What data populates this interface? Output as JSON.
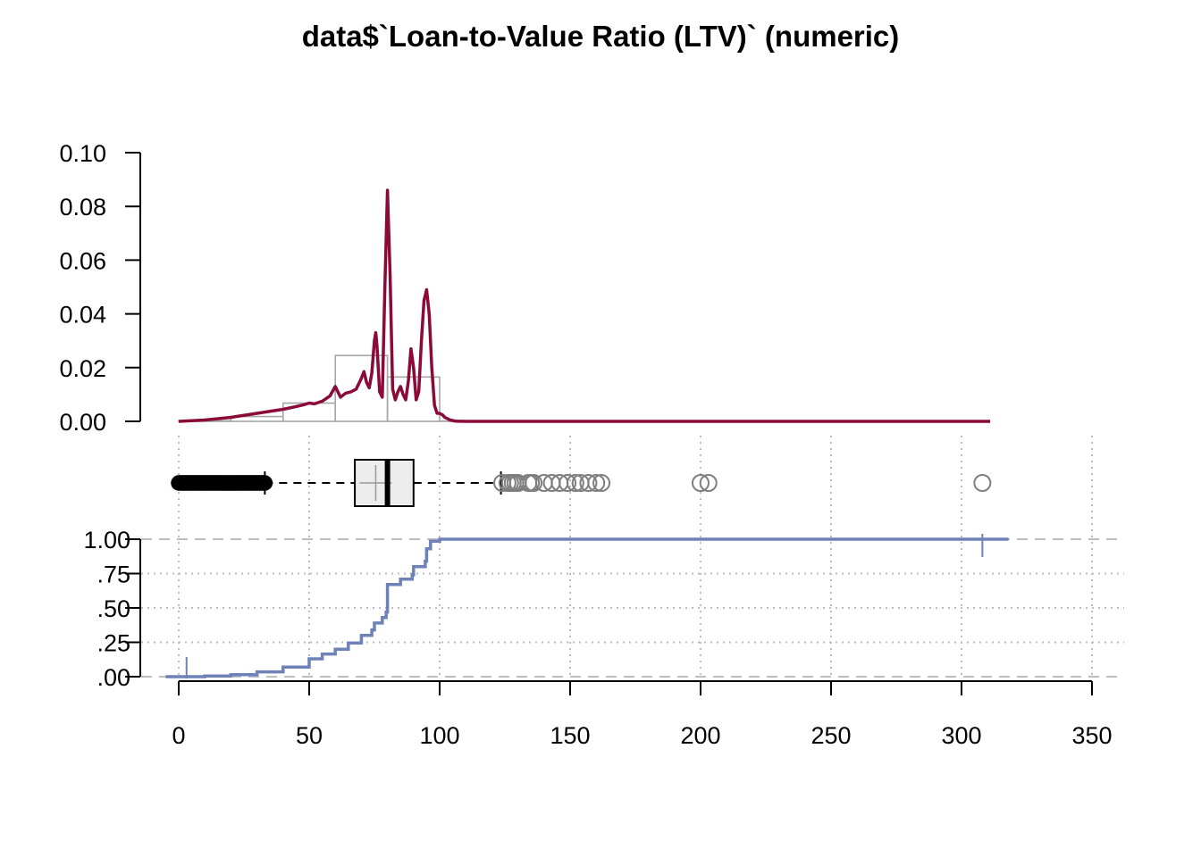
{
  "chart_data": {
    "type": "density+boxplot+ecdf",
    "title": "data$`Loan-to-Value Ratio (LTV)` (numeric)",
    "xlim": [
      0,
      350
    ],
    "x_ticks": [
      0,
      50,
      100,
      150,
      200,
      250,
      300,
      350
    ],
    "x_tick_labels": [
      "0",
      "50",
      "100",
      "150",
      "200",
      "250",
      "300",
      "350"
    ],
    "colors": {
      "density": "#8B0A3A",
      "histogram": "#A6A6A6",
      "ecdf": "#6F82B8",
      "grid": "#BDBDBD",
      "box_fill": "#EDEDED",
      "outlier": "#7F7F7F"
    },
    "density_panel": {
      "ylim": [
        0,
        0.1
      ],
      "y_ticks": [
        0,
        0.02,
        0.04,
        0.06,
        0.08,
        0.1
      ],
      "y_tick_labels": [
        "0.00",
        "0.02",
        "0.04",
        "0.06",
        "0.08",
        "0.10"
      ],
      "histogram": {
        "breaks": [
          0,
          20,
          40,
          60,
          80,
          100,
          120,
          140,
          160,
          180,
          200,
          220,
          240,
          260,
          280,
          300,
          320
        ],
        "density": [
          0.0002,
          0.0018,
          0.0068,
          0.0245,
          0.0165,
          0.0001,
          0.0,
          0.0,
          0.0,
          0.0,
          0.0,
          0.0,
          0.0,
          0.0,
          0.0,
          0.0
        ]
      },
      "density_curve": {
        "x": [
          0,
          10,
          20,
          30,
          40,
          45,
          48,
          50,
          52,
          55,
          58,
          60,
          62,
          64,
          66,
          68,
          70,
          71,
          72,
          73,
          74,
          75,
          75.5,
          76,
          77,
          78,
          79,
          80,
          81,
          82,
          83,
          84,
          85,
          86,
          87,
          88,
          89,
          90,
          91,
          92,
          93,
          94,
          95,
          96,
          97,
          98,
          99,
          100,
          101,
          102,
          104,
          106,
          110,
          150,
          200,
          250,
          300,
          311
        ],
        "y": [
          0.0,
          0.0005,
          0.0015,
          0.003,
          0.0045,
          0.0055,
          0.0062,
          0.0068,
          0.0065,
          0.0075,
          0.0095,
          0.013,
          0.009,
          0.0105,
          0.011,
          0.012,
          0.016,
          0.0185,
          0.0145,
          0.0125,
          0.018,
          0.03,
          0.033,
          0.028,
          0.011,
          0.009,
          0.05,
          0.086,
          0.055,
          0.012,
          0.008,
          0.011,
          0.013,
          0.01,
          0.008,
          0.015,
          0.027,
          0.02,
          0.008,
          0.011,
          0.03,
          0.045,
          0.049,
          0.04,
          0.02,
          0.006,
          0.003,
          0.003,
          0.0025,
          0.0015,
          0.0005,
          0.0001,
          0.0,
          0.0,
          0.0,
          0.0,
          0.0,
          0.0
        ]
      }
    },
    "boxplot_panel": {
      "q1": 67.5,
      "median": 80,
      "q3": 90,
      "mean": 75.5,
      "whisker_low": 33,
      "whisker_high": 123.5,
      "outliers_low_range": [
        0,
        33
      ],
      "outliers_high": [
        124,
        126,
        127,
        128,
        129,
        130,
        134,
        135,
        136,
        140,
        143,
        146,
        149,
        152,
        154,
        157,
        160,
        162,
        200,
        203,
        308
      ]
    },
    "ecdf_panel": {
      "ylim": [
        0,
        1
      ],
      "y_ticks": [
        0,
        0.25,
        0.5,
        0.75,
        1
      ],
      "y_tick_labels": [
        ".00",
        ".25",
        ".50",
        ".75",
        "1.00"
      ],
      "x": [
        3,
        10,
        20,
        30,
        40,
        50,
        55,
        60,
        65,
        70,
        74,
        75,
        78,
        79.5,
        80,
        85,
        89.5,
        90,
        94.5,
        95,
        96.5,
        100,
        105,
        308
      ],
      "y": [
        0.0,
        0.005,
        0.015,
        0.035,
        0.07,
        0.13,
        0.165,
        0.2,
        0.245,
        0.3,
        0.34,
        0.39,
        0.43,
        0.47,
        0.67,
        0.71,
        0.74,
        0.8,
        0.84,
        0.93,
        0.985,
        1.0,
        1.0,
        1.0
      ],
      "x_extend": [
        -5,
        318
      ]
    }
  }
}
